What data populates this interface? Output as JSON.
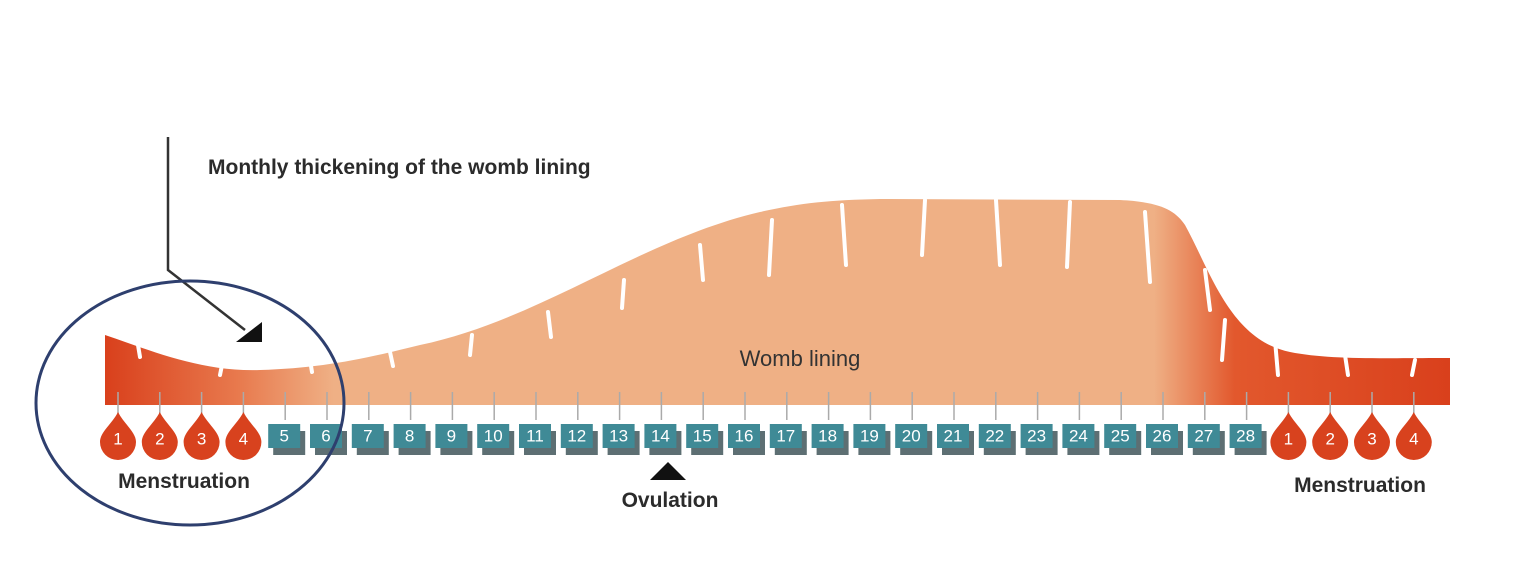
{
  "title": "Monthly thickening of the womb lining",
  "lining_label": "Womb lining",
  "days": {
    "menstruation_start": [
      "1",
      "2",
      "3",
      "4"
    ],
    "cycle": [
      "5",
      "6",
      "7",
      "8",
      "9",
      "10",
      "11",
      "12",
      "13",
      "14",
      "15",
      "16",
      "17",
      "18",
      "19",
      "20",
      "21",
      "22",
      "23",
      "24",
      "25",
      "26",
      "27",
      "28"
    ],
    "menstruation_end": [
      "1",
      "2",
      "3",
      "4"
    ]
  },
  "labels": {
    "menstruation_left": "Menstruation",
    "ovulation": "Ovulation",
    "menstruation_right": "Menstruation"
  }
}
